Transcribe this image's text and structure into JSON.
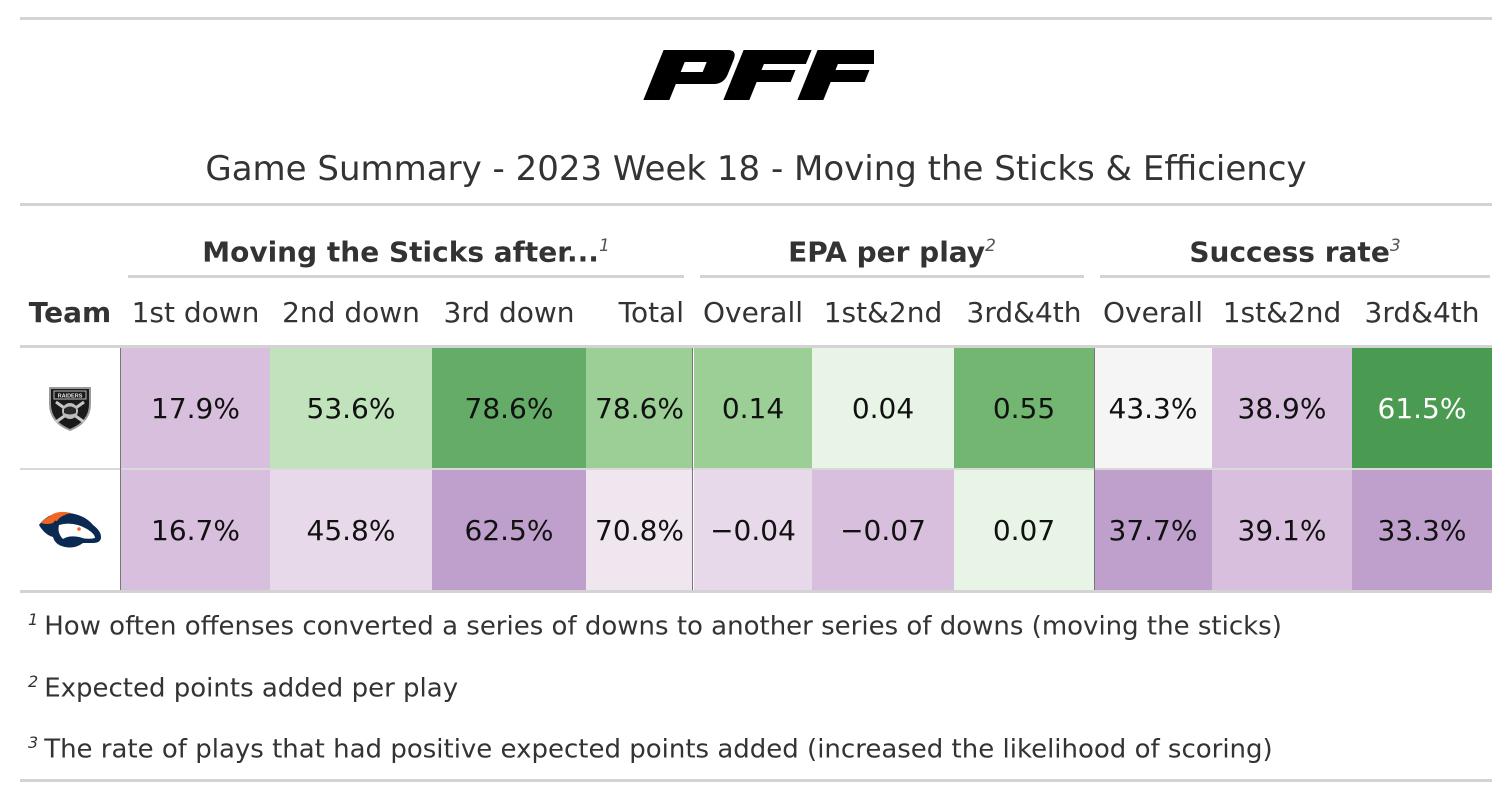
{
  "logo": {
    "text": "PFF",
    "icon": "pff-logo"
  },
  "title": "Game Summary - 2023 Week 18 - Moving the Sticks & Efficiency",
  "spanners": [
    {
      "label": "Moving the Sticks after...",
      "mark": "1"
    },
    {
      "label": "EPA per play",
      "mark": "2"
    },
    {
      "label": "Success rate",
      "mark": "3"
    }
  ],
  "columns": [
    "Team",
    "1st down",
    "2nd down",
    "3rd down",
    "Total",
    "Overall",
    "1st&2nd",
    "3rd&4th",
    "Overall",
    "1st&2nd",
    "3rd&4th"
  ],
  "rows": [
    {
      "team_icon": "raiders-logo",
      "team_logo_text": "RAIDERS",
      "cells": [
        {
          "value": "17.9%",
          "bg": "#d8bfde",
          "fg": "#111111"
        },
        {
          "value": "53.6%",
          "bg": "#c1e3bc",
          "fg": "#111111"
        },
        {
          "value": "78.6%",
          "bg": "#64ac67",
          "fg": "#111111"
        },
        {
          "value": "78.6%",
          "bg": "#9bcf95",
          "fg": "#111111"
        },
        {
          "value": "0.14",
          "bg": "#9bcf95",
          "fg": "#111111"
        },
        {
          "value": "0.04",
          "bg": "#e8f4e5",
          "fg": "#111111"
        },
        {
          "value": "0.55",
          "bg": "#72b672",
          "fg": "#111111"
        },
        {
          "value": "43.3%",
          "bg": "#f5f5f5",
          "fg": "#111111"
        },
        {
          "value": "38.9%",
          "bg": "#d8bfde",
          "fg": "#111111"
        },
        {
          "value": "61.5%",
          "bg": "#4a9b51",
          "fg": "#ffffff"
        }
      ]
    },
    {
      "team_icon": "broncos-logo",
      "team_logo_text": "",
      "cells": [
        {
          "value": "16.7%",
          "bg": "#d8bfde",
          "fg": "#111111"
        },
        {
          "value": "45.8%",
          "bg": "#e8d9ea",
          "fg": "#111111"
        },
        {
          "value": "62.5%",
          "bg": "#bfa0cd",
          "fg": "#111111"
        },
        {
          "value": "70.8%",
          "bg": "#efe6ef",
          "fg": "#111111"
        },
        {
          "value": "−0.04",
          "bg": "#e8d9ea",
          "fg": "#111111"
        },
        {
          "value": "−0.07",
          "bg": "#d8bfde",
          "fg": "#111111"
        },
        {
          "value": "0.07",
          "bg": "#e8f4e5",
          "fg": "#111111"
        },
        {
          "value": "37.7%",
          "bg": "#bfa0cd",
          "fg": "#111111"
        },
        {
          "value": "39.1%",
          "bg": "#d8bfde",
          "fg": "#111111"
        },
        {
          "value": "33.3%",
          "bg": "#bfa0cd",
          "fg": "#111111"
        }
      ]
    }
  ],
  "footnotes": [
    {
      "mark": "1",
      "text": "How often offenses converted a series of downs to another series of downs (moving the sticks)"
    },
    {
      "mark": "2",
      "text": "Expected points added per play"
    },
    {
      "mark": "3",
      "text": "The rate of plays that had positive expected points added (increased the likelihood of scoring)"
    }
  ]
}
